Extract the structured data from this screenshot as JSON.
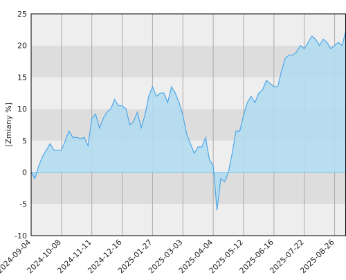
{
  "chart_data": {
    "type": "area",
    "y_label": "[Zmiany %]",
    "categories": [
      "2024-09-04",
      null,
      null,
      null,
      null,
      null,
      null,
      null,
      "2024-10-08",
      null,
      null,
      null,
      null,
      null,
      null,
      null,
      "2024-11-11",
      null,
      null,
      null,
      null,
      null,
      null,
      null,
      "2024-12-16",
      null,
      null,
      null,
      null,
      null,
      null,
      null,
      "2025-01-27",
      null,
      null,
      null,
      null,
      null,
      null,
      null,
      "2025-03-03",
      null,
      null,
      null,
      null,
      null,
      null,
      null,
      "2025-04-04",
      null,
      null,
      null,
      null,
      null,
      null,
      null,
      "2025-05-12",
      null,
      null,
      null,
      null,
      null,
      null,
      null,
      "2025-06-16",
      null,
      null,
      null,
      null,
      null,
      null,
      null,
      "2025-07-22",
      null,
      null,
      null,
      null,
      null,
      null,
      null,
      "2025-08-26",
      null,
      null,
      null
    ],
    "values": [
      0,
      -1,
      1,
      2.5,
      3.5,
      4.5,
      3.5,
      3.5,
      3.5,
      5,
      6.5,
      5.5,
      5.5,
      5.3,
      5.5,
      4.2,
      8.5,
      9.2,
      7,
      8.5,
      9.5,
      10,
      11.5,
      10.5,
      10.5,
      10,
      7.5,
      8,
      9.5,
      7,
      9,
      12,
      13.5,
      12,
      12.5,
      12.5,
      11,
      13.5,
      12.5,
      11,
      9,
      6,
      4.5,
      3,
      4,
      4,
      5.5,
      2,
      1,
      -6,
      -1,
      -1.5,
      0,
      3,
      6.5,
      6.5,
      9,
      11,
      12,
      11,
      12.5,
      13,
      14.5,
      14,
      13.5,
      13.5,
      16,
      18,
      18.5,
      18.5,
      19,
      20,
      19.5,
      20.5,
      21.5,
      21,
      20,
      21,
      20.5,
      19.5,
      20,
      20.5,
      20,
      22.5
    ],
    "color": "#4da6e8",
    "fill_color": "#b3dcef",
    "ylim": [
      -10,
      25
    ],
    "yticks": [
      -10,
      -5,
      0,
      5,
      10,
      15,
      20,
      25
    ],
    "band_colors": [
      "#eeeeee",
      "#dddddd"
    ],
    "grid": true
  }
}
